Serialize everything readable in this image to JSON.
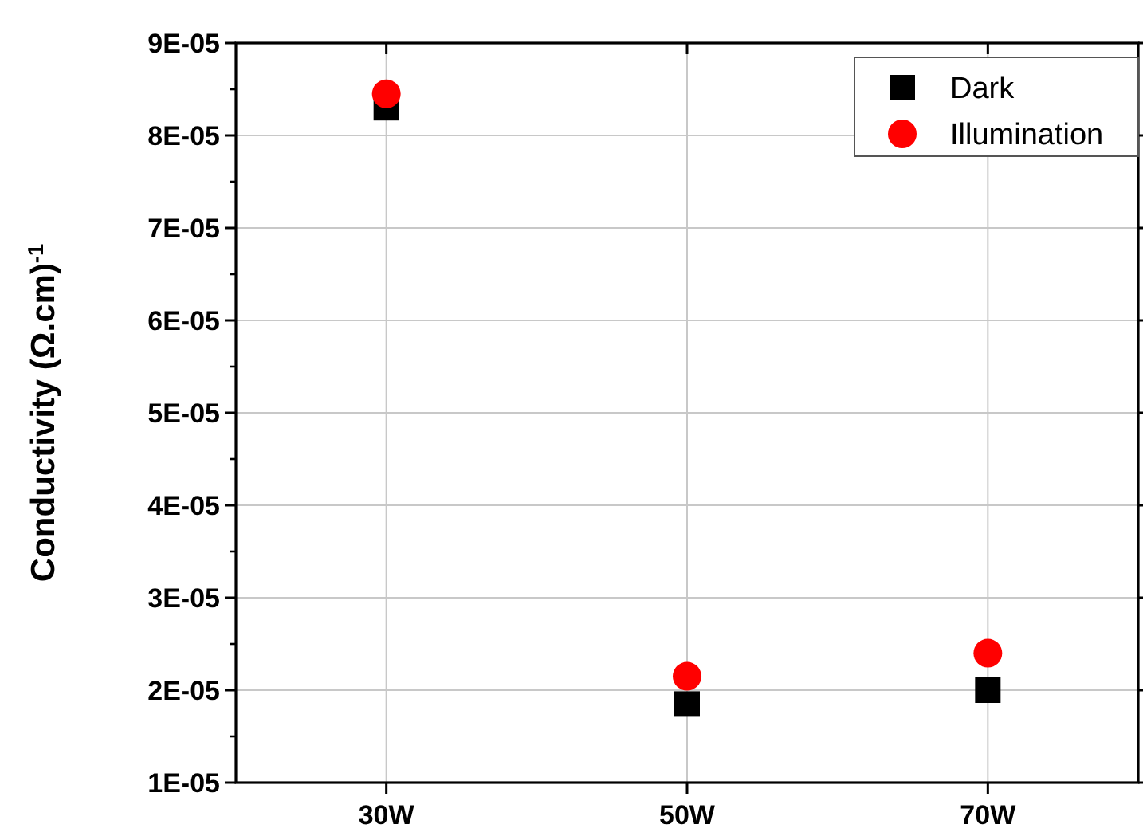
{
  "chart_data": {
    "type": "scatter",
    "ylabel": "Conductivity (Ω.cm)$^{-1}$",
    "categories": [
      "30W",
      "50W",
      "70W"
    ],
    "series": [
      {
        "name": "Dark",
        "color": "#000000",
        "marker": "square",
        "values": [
          8.3e-05,
          1.85e-05,
          2e-05
        ]
      },
      {
        "name": "Illumination",
        "color": "#ff0000",
        "marker": "circle",
        "values": [
          8.45e-05,
          2.15e-05,
          2.4e-05
        ]
      }
    ],
    "ylim": [
      1e-05,
      9e-05
    ],
    "yticks": [
      {
        "value": 1e-05,
        "label": "1E-05"
      },
      {
        "value": 2e-05,
        "label": "2E-05"
      },
      {
        "value": 3e-05,
        "label": "3E-05"
      },
      {
        "value": 4e-05,
        "label": "4E-05"
      },
      {
        "value": 5e-05,
        "label": "5E-05"
      },
      {
        "value": 6e-05,
        "label": "6E-05"
      },
      {
        "value": 7e-05,
        "label": "7E-05"
      },
      {
        "value": 8e-05,
        "label": "8E-05"
      },
      {
        "value": 9e-05,
        "label": "9E-05"
      }
    ],
    "grid": true,
    "legend": "top right"
  }
}
